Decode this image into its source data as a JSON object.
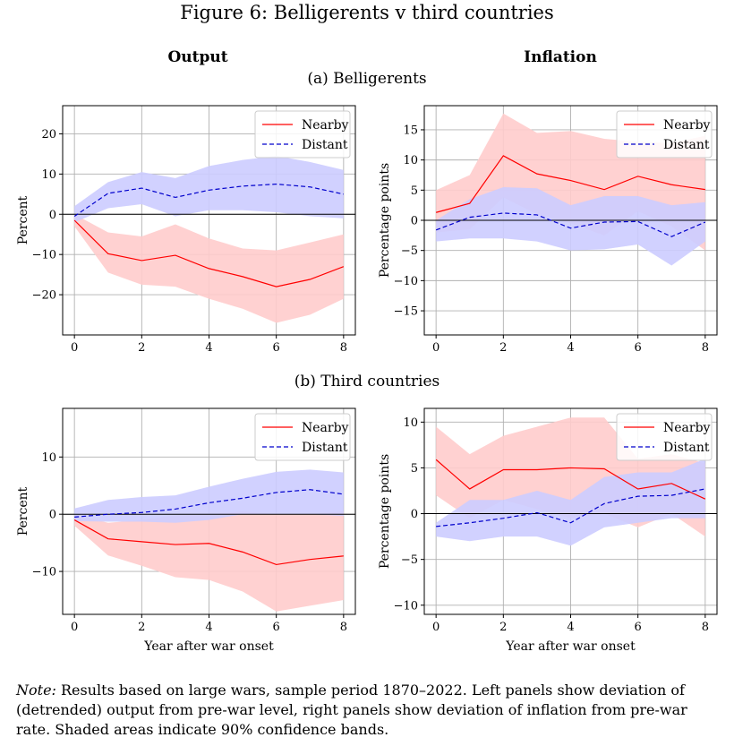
{
  "figure_title": "Figure 6: Belligerents v third countries",
  "columns": {
    "left": "Output",
    "right": "Inflation"
  },
  "panels": {
    "a": "(a) Belligerents",
    "b": "(b) Third countries"
  },
  "note": {
    "label": "Note:",
    "text": " Results based on large wars, sample period 1870–2022. Left panels show deviation of (detrended) output from pre-war level, right panels show deviation of inflation from pre-war rate. Shaded areas indicate 90% confidence bands."
  },
  "colors": {
    "nearby": "#ff0000",
    "distant": "#0000cc",
    "nearby_band": "#ffcccc",
    "distant_band": "#ccccff",
    "grid": "#b0b0b0"
  },
  "chart_data": [
    {
      "id": "a-output",
      "type": "line",
      "x": [
        0,
        1,
        2,
        3,
        4,
        5,
        6,
        7,
        8
      ],
      "xticks": [
        0,
        2,
        4,
        6,
        8
      ],
      "xlabel": "",
      "ylabel": "Percent",
      "ylim": [
        -30,
        27
      ],
      "yticks": [
        20,
        10,
        0,
        -10,
        -20
      ],
      "ytick_labels": [
        "20",
        "10",
        "0",
        "−10",
        "−20"
      ],
      "legend": "top-right",
      "grid": true,
      "series": [
        {
          "name": "Nearby",
          "style": "solid",
          "values": [
            -1.5,
            -9.8,
            -11.5,
            -10.2,
            -13.5,
            -15.5,
            -18,
            -16.2,
            -13
          ],
          "lower": [
            -3,
            -14.5,
            -17.5,
            -18,
            -21,
            -23.5,
            -27,
            -25,
            -21
          ],
          "upper": [
            0,
            -4.5,
            -5.5,
            -2.5,
            -6,
            -8.5,
            -9,
            -7,
            -5
          ]
        },
        {
          "name": "Distant",
          "style": "dashed",
          "values": [
            -0.5,
            5.2,
            6.5,
            4.2,
            6,
            7,
            7.5,
            6.8,
            5
          ],
          "lower": [
            -2,
            1.5,
            2.5,
            -0.5,
            1,
            1,
            0.5,
            -0.5,
            -1
          ],
          "upper": [
            2,
            8,
            10.5,
            9,
            12,
            13.5,
            14.5,
            13,
            11
          ]
        }
      ]
    },
    {
      "id": "a-inflation",
      "type": "line",
      "x": [
        0,
        1,
        2,
        3,
        4,
        5,
        6,
        7,
        8
      ],
      "xticks": [
        0,
        2,
        4,
        6,
        8
      ],
      "xlabel": "",
      "ylabel": "Percentage points",
      "ylim": [
        -19,
        19
      ],
      "yticks": [
        15,
        10,
        5,
        0,
        -5,
        -10,
        -15
      ],
      "ytick_labels": [
        "15",
        "10",
        "5",
        "0",
        "−5",
        "−10",
        "−15"
      ],
      "legend": "top-right",
      "grid": true,
      "series": [
        {
          "name": "Nearby",
          "style": "solid",
          "values": [
            1.3,
            2.8,
            10.7,
            7.7,
            6.6,
            5.1,
            7.3,
            5.9,
            5.1
          ],
          "lower": [
            -2,
            -1.5,
            3.8,
            1,
            -0.5,
            -2.5,
            1.5,
            -1,
            -5
          ],
          "upper": [
            5,
            7.5,
            17.7,
            14.5,
            14.8,
            13.5,
            13,
            12.8,
            14
          ]
        },
        {
          "name": "Distant",
          "style": "dashed",
          "values": [
            -1.6,
            0.5,
            1.2,
            0.9,
            -1.3,
            -0.3,
            -0.2,
            -2.7,
            -0.3
          ],
          "lower": [
            -3.5,
            -3,
            -3,
            -3.5,
            -5,
            -4.8,
            -4,
            -7.5,
            -3.5
          ],
          "upper": [
            0,
            3.5,
            5.5,
            5.3,
            2.5,
            4,
            4,
            2.5,
            3
          ]
        }
      ]
    },
    {
      "id": "b-output",
      "type": "line",
      "x": [
        0,
        1,
        2,
        3,
        4,
        5,
        6,
        7,
        8
      ],
      "xticks": [
        0,
        2,
        4,
        6,
        8
      ],
      "xlabel": "Year after war onset",
      "ylabel": "Percent",
      "ylim": [
        -17.5,
        18.5
      ],
      "yticks": [
        10,
        0,
        -10
      ],
      "ytick_labels": [
        "10",
        "0",
        "−10"
      ],
      "legend": "top-right",
      "grid": true,
      "series": [
        {
          "name": "Nearby",
          "style": "solid",
          "values": [
            -1,
            -4.3,
            -4.8,
            -5.3,
            -5.1,
            -6.6,
            -8.8,
            -7.9,
            -7.3
          ],
          "lower": [
            -2,
            -7.2,
            -9,
            -11,
            -11.5,
            -13.5,
            -17,
            -16,
            -15
          ],
          "upper": [
            0,
            -1.5,
            -1,
            -0.2,
            0,
            0.5,
            0,
            0,
            0.5
          ]
        },
        {
          "name": "Distant",
          "style": "dashed",
          "values": [
            -0.5,
            0,
            0.3,
            0.9,
            2,
            2.8,
            3.8,
            4.3,
            3.5
          ],
          "lower": [
            -1.2,
            -1.3,
            -1.3,
            -1.5,
            -1,
            0,
            0,
            0,
            -0.3
          ],
          "upper": [
            1,
            2.5,
            3,
            3.3,
            4.8,
            6.2,
            7.4,
            7.8,
            7.3
          ]
        }
      ]
    },
    {
      "id": "b-inflation",
      "type": "line",
      "x": [
        0,
        1,
        2,
        3,
        4,
        5,
        6,
        7,
        8
      ],
      "xticks": [
        0,
        2,
        4,
        6,
        8
      ],
      "xlabel": "Year after war onset",
      "ylabel": "Percentage points",
      "ylim": [
        -11,
        11.5
      ],
      "yticks": [
        10,
        5,
        0,
        -5,
        -10
      ],
      "ytick_labels": [
        "10",
        "5",
        "0",
        "−5",
        "−10"
      ],
      "legend": "top-right",
      "grid": true,
      "series": [
        {
          "name": "Nearby",
          "style": "solid",
          "values": [
            5.9,
            2.7,
            4.8,
            4.8,
            5,
            4.9,
            2.7,
            3.3,
            1.6
          ],
          "lower": [
            2,
            -0.5,
            1.5,
            0.5,
            -0.5,
            0,
            -1.5,
            0,
            -2.5
          ],
          "upper": [
            9.5,
            6.5,
            8.5,
            9.5,
            10.5,
            10.5,
            6,
            6.5,
            5.5
          ]
        },
        {
          "name": "Distant",
          "style": "dashed",
          "values": [
            -1.4,
            -1,
            -0.5,
            0.1,
            -1,
            1.1,
            1.9,
            2,
            2.7
          ],
          "lower": [
            -2.5,
            -3,
            -2.5,
            -2.5,
            -3.5,
            -1.5,
            -1,
            -0.5,
            -0.5
          ],
          "upper": [
            -1,
            1.5,
            1.5,
            2.5,
            1.5,
            4,
            4.5,
            4.5,
            6
          ]
        }
      ]
    }
  ]
}
